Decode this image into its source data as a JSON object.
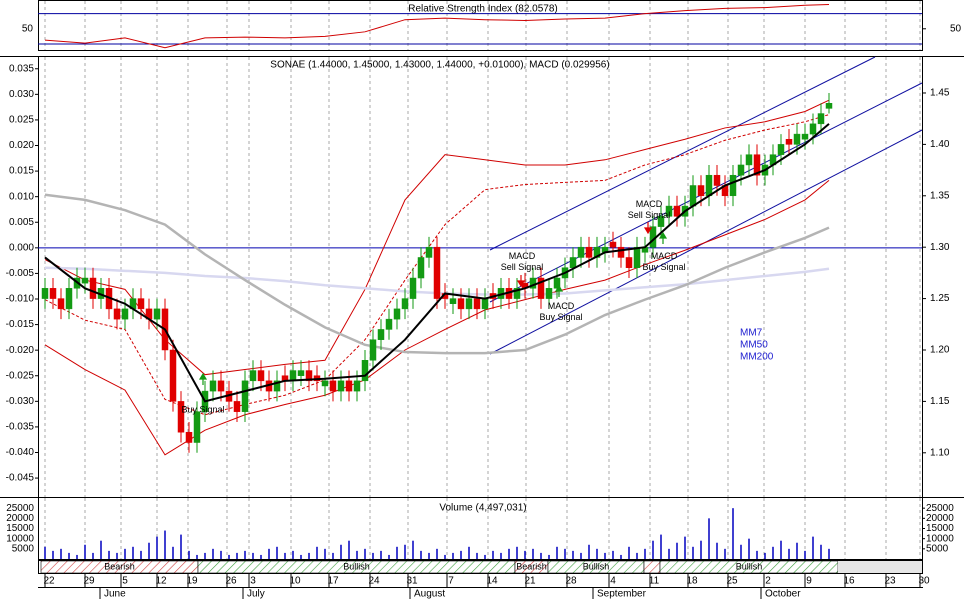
{
  "chart_data": [
    {
      "type": "line",
      "title": "Relative Strength Index (82.0578)",
      "ylim": [
        22,
        88
      ],
      "yticks": [
        50
      ],
      "bands": [
        30,
        70
      ],
      "band_color": "#0000a0",
      "series": [
        {
          "color": "#d00000",
          "values": [
            35,
            31,
            38,
            25,
            38,
            39,
            38,
            40,
            46,
            62,
            64,
            62,
            61,
            63,
            64,
            70,
            74,
            77,
            78,
            81,
            82.06
          ]
        }
      ]
    },
    {
      "type": "candlestick",
      "title": "SONAE (1.44000, 1.45000, 1.43000, 1.44000, +0.01000), MACD (0.029956)",
      "ylim": [
        -0.0487,
        0.0373
      ],
      "yticks": [
        {
          "value": 0.035,
          "label": "0.035"
        },
        {
          "value": 0.03,
          "label": "0.030"
        },
        {
          "value": 0.025,
          "label": "0.025"
        },
        {
          "value": 0.02,
          "label": "0.020"
        },
        {
          "value": 0.015,
          "label": "0.015"
        },
        {
          "value": 0.01,
          "label": "0.010"
        },
        {
          "value": 0.005,
          "label": "0.005"
        },
        {
          "value": 0,
          "label": "0.000"
        },
        {
          "value": -0.005,
          "label": "-0.005"
        },
        {
          "value": -0.01,
          "label": "-0.010"
        },
        {
          "value": -0.015,
          "label": "-0.015"
        },
        {
          "value": -0.02,
          "label": "-0.020"
        },
        {
          "value": -0.025,
          "label": "-0.025"
        },
        {
          "value": -0.03,
          "label": "-0.030"
        },
        {
          "value": -0.035,
          "label": "-0.035"
        },
        {
          "value": -0.04,
          "label": "-0.040"
        },
        {
          "value": -0.045,
          "label": "-0.045"
        }
      ],
      "y2lim": [
        1.057,
        1.485
      ],
      "y2ticks": [
        {
          "value": 1.45,
          "label": "1.45"
        },
        {
          "value": 1.4,
          "label": "1.40"
        },
        {
          "value": 1.35,
          "label": "1.35"
        },
        {
          "value": 1.3,
          "label": "1.30"
        },
        {
          "value": 1.25,
          "label": "1.25"
        },
        {
          "value": 1.2,
          "label": "1.20"
        },
        {
          "value": 1.15,
          "label": "1.15"
        },
        {
          "value": 1.1,
          "label": "1.10"
        }
      ],
      "candles": {
        "up_color": "#139a13",
        "down_color": "#e00000",
        "open": [
          1.25,
          1.26,
          1.25,
          1.24,
          1.26,
          1.265,
          1.27,
          1.25,
          1.26,
          1.24,
          1.23,
          1.24,
          1.25,
          1.24,
          1.23,
          1.24,
          1.2,
          1.15,
          1.12,
          1.11,
          1.14,
          1.16,
          1.17,
          1.16,
          1.15,
          1.14,
          1.17,
          1.18,
          1.17,
          1.16,
          1.175,
          1.17,
          1.175,
          1.18,
          1.175,
          1.165,
          1.17,
          1.16,
          1.17,
          1.16,
          1.17,
          1.19,
          1.21,
          1.22,
          1.23,
          1.24,
          1.25,
          1.27,
          1.29,
          1.3,
          1.255,
          1.245,
          1.25,
          1.24,
          1.25,
          1.24,
          1.255,
          1.25,
          1.26,
          1.25,
          1.265,
          1.26,
          1.27,
          1.25,
          1.26,
          1.27,
          1.28,
          1.29,
          1.3,
          1.29,
          1.295,
          1.305,
          1.3,
          1.29,
          1.28,
          1.295,
          1.3,
          1.32,
          1.33,
          1.34,
          1.33,
          1.34,
          1.36,
          1.35,
          1.37,
          1.36,
          1.35,
          1.37,
          1.38,
          1.39,
          1.37,
          1.38,
          1.39,
          1.405,
          1.4,
          1.405,
          1.41,
          1.42,
          1.435
        ],
        "high": [
          1.27,
          1.27,
          1.26,
          1.27,
          1.28,
          1.28,
          1.28,
          1.27,
          1.27,
          1.25,
          1.25,
          1.26,
          1.26,
          1.25,
          1.25,
          1.25,
          1.21,
          1.16,
          1.13,
          1.15,
          1.17,
          1.18,
          1.18,
          1.17,
          1.16,
          1.18,
          1.19,
          1.19,
          1.18,
          1.18,
          1.185,
          1.19,
          1.19,
          1.19,
          1.185,
          1.18,
          1.18,
          1.18,
          1.18,
          1.18,
          1.2,
          1.22,
          1.23,
          1.24,
          1.25,
          1.26,
          1.28,
          1.3,
          1.31,
          1.31,
          1.265,
          1.26,
          1.26,
          1.26,
          1.26,
          1.26,
          1.265,
          1.27,
          1.27,
          1.27,
          1.275,
          1.28,
          1.28,
          1.27,
          1.28,
          1.29,
          1.3,
          1.31,
          1.31,
          1.31,
          1.31,
          1.315,
          1.31,
          1.3,
          1.31,
          1.31,
          1.33,
          1.34,
          1.35,
          1.35,
          1.35,
          1.37,
          1.37,
          1.38,
          1.38,
          1.37,
          1.38,
          1.39,
          1.4,
          1.4,
          1.39,
          1.4,
          1.41,
          1.415,
          1.42,
          1.42,
          1.43,
          1.44,
          1.45
        ],
        "low": [
          1.24,
          1.24,
          1.23,
          1.23,
          1.25,
          1.255,
          1.24,
          1.24,
          1.23,
          1.22,
          1.22,
          1.23,
          1.23,
          1.22,
          1.22,
          1.19,
          1.14,
          1.11,
          1.1,
          1.1,
          1.13,
          1.15,
          1.15,
          1.14,
          1.13,
          1.13,
          1.16,
          1.16,
          1.15,
          1.15,
          1.16,
          1.16,
          1.165,
          1.16,
          1.16,
          1.155,
          1.15,
          1.15,
          1.15,
          1.15,
          1.16,
          1.18,
          1.2,
          1.21,
          1.22,
          1.23,
          1.24,
          1.26,
          1.28,
          1.24,
          1.24,
          1.235,
          1.23,
          1.23,
          1.23,
          1.23,
          1.24,
          1.24,
          1.24,
          1.24,
          1.25,
          1.25,
          1.24,
          1.24,
          1.25,
          1.26,
          1.27,
          1.28,
          1.28,
          1.28,
          1.285,
          1.29,
          1.28,
          1.27,
          1.27,
          1.285,
          1.29,
          1.31,
          1.32,
          1.32,
          1.32,
          1.33,
          1.34,
          1.34,
          1.35,
          1.34,
          1.34,
          1.36,
          1.37,
          1.36,
          1.36,
          1.37,
          1.38,
          1.39,
          1.39,
          1.395,
          1.4,
          1.41,
          1.43
        ],
        "close": [
          1.26,
          1.25,
          1.24,
          1.26,
          1.27,
          1.27,
          1.25,
          1.26,
          1.24,
          1.23,
          1.24,
          1.25,
          1.24,
          1.23,
          1.24,
          1.2,
          1.15,
          1.12,
          1.11,
          1.14,
          1.16,
          1.17,
          1.16,
          1.15,
          1.14,
          1.17,
          1.18,
          1.17,
          1.16,
          1.17,
          1.17,
          1.18,
          1.18,
          1.17,
          1.17,
          1.17,
          1.16,
          1.17,
          1.16,
          1.17,
          1.19,
          1.21,
          1.22,
          1.23,
          1.24,
          1.25,
          1.27,
          1.29,
          1.3,
          1.25,
          1.25,
          1.25,
          1.24,
          1.25,
          1.24,
          1.25,
          1.25,
          1.26,
          1.25,
          1.26,
          1.26,
          1.27,
          1.25,
          1.26,
          1.27,
          1.28,
          1.29,
          1.3,
          1.29,
          1.3,
          1.3,
          1.3,
          1.29,
          1.28,
          1.3,
          1.3,
          1.32,
          1.33,
          1.34,
          1.33,
          1.34,
          1.36,
          1.35,
          1.37,
          1.36,
          1.35,
          1.37,
          1.38,
          1.39,
          1.37,
          1.38,
          1.39,
          1.4,
          1.4,
          1.41,
          1.41,
          1.42,
          1.43,
          1.44
        ]
      },
      "bands": {
        "color": "#d00000",
        "upper": [
          1.288,
          1.268,
          1.259,
          1.21,
          1.176,
          1.181,
          1.186,
          1.19,
          1.259,
          1.346,
          1.39,
          1.385,
          1.38,
          1.38,
          1.385,
          1.395,
          1.405,
          1.416,
          1.422,
          1.432,
          1.443
        ],
        "middle": [
          1.249,
          1.229,
          1.22,
          1.152,
          1.137,
          1.147,
          1.156,
          1.171,
          1.21,
          1.268,
          1.322,
          1.356,
          1.361,
          1.363,
          1.365,
          1.38,
          1.39,
          1.404,
          1.414,
          1.422,
          1.429
        ],
        "lower": [
          1.205,
          1.181,
          1.161,
          1.098,
          1.122,
          1.137,
          1.147,
          1.156,
          1.171,
          1.2,
          1.22,
          1.239,
          1.249,
          1.259,
          1.268,
          1.283,
          1.297,
          1.312,
          1.327,
          1.346,
          1.365
        ]
      },
      "series": [
        {
          "name": "MM7",
          "color": "#000000",
          "values": [
            1.29,
            1.26,
            1.245,
            1.22,
            1.15,
            1.16,
            1.17,
            1.172,
            1.175,
            1.21,
            1.255,
            1.25,
            1.26,
            1.275,
            1.295,
            1.3,
            1.335,
            1.36,
            1.375,
            1.4,
            1.42
          ]
        },
        {
          "name": "MM50",
          "color": "#b4b4b4",
          "values": [
            1.351,
            1.346,
            1.336,
            1.322,
            1.293,
            1.268,
            1.244,
            1.222,
            1.205,
            1.198,
            1.197,
            1.197,
            1.2,
            1.215,
            1.234,
            1.249,
            1.263,
            1.28,
            1.295,
            1.309,
            1.319
          ]
        },
        {
          "name": "MM200",
          "color": "#d8d8f0",
          "values": [
            1.28,
            1.279,
            1.277,
            1.275,
            1.272,
            1.27,
            1.267,
            1.263,
            1.26,
            1.257,
            1.255,
            1.254,
            1.254,
            1.255,
            1.258,
            1.261,
            1.264,
            1.268,
            1.272,
            1.276,
            1.279
          ]
        }
      ],
      "legend_color": "#2020d0",
      "annotations": [
        [
          "Buy Signal"
        ],
        [
          "MACD",
          "Sell Signal"
        ],
        [
          "MACD",
          "Buy Signal"
        ],
        [
          "MACD",
          "Sell Signal"
        ],
        [
          "MACD",
          "Buy Signal"
        ]
      ]
    },
    {
      "type": "bar",
      "title": "Volume (4,497,031)",
      "color": "#0000c0",
      "ylim": [
        0,
        30000
      ],
      "yticks": [
        25000,
        20000,
        15000,
        10000,
        5000
      ],
      "values": [
        6000,
        4000,
        5000,
        3000,
        2000,
        7000,
        3000,
        9000,
        4000,
        3000,
        5000,
        6000,
        4000,
        8000,
        11000,
        14000,
        6000,
        12000,
        4000,
        2000,
        3000,
        5000,
        4000,
        2000,
        3000,
        4000,
        3000,
        2000,
        5000,
        6000,
        3000,
        4000,
        2000,
        3000,
        6000,
        5000,
        3000,
        7000,
        9000,
        4000,
        5000,
        3000,
        4000,
        2000,
        6000,
        7000,
        9000,
        4000,
        3000,
        5000,
        2000,
        3000,
        4000,
        6000,
        3000,
        2000,
        4000,
        3000,
        5000,
        6000,
        4000,
        5000,
        3000,
        2000,
        6000,
        5000,
        4000,
        3000,
        7000,
        5000,
        3000,
        4000,
        2000,
        6000,
        3000,
        5000,
        9000,
        12000,
        5000,
        8000,
        11000,
        6000,
        9000,
        20000,
        8000,
        5000,
        25000,
        7000,
        10000,
        4000,
        3000,
        6000,
        9000,
        5000,
        8000,
        4000,
        11000,
        7000,
        5000
      ]
    }
  ],
  "regimes": [
    "Bearish",
    "Bullish",
    "Bearish",
    "Bullish",
    null,
    "Bullish"
  ],
  "date_axis": {
    "days": [
      "22",
      "29",
      "5",
      "12",
      "19",
      "26",
      "3",
      "10",
      "17",
      "24",
      "31",
      "7",
      "14",
      "21",
      "28",
      "4",
      "11",
      "18",
      "25",
      "2",
      "9",
      "16",
      "23",
      "30"
    ],
    "months": [
      "June",
      "July",
      "August",
      "September",
      "October"
    ]
  }
}
